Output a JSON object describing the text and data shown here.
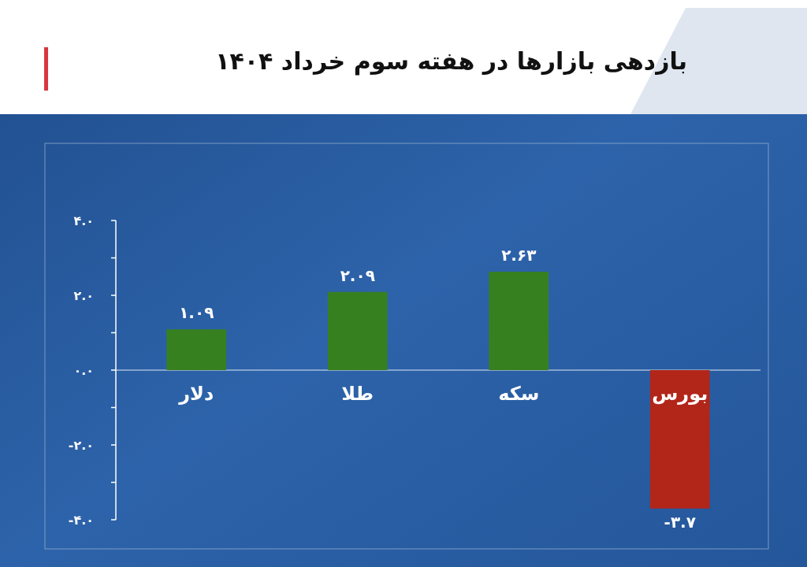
{
  "chart_data": {
    "type": "bar",
    "title": "بازدهی بازارها در هفته سوم خرداد ۱۴۰۴",
    "categories": [
      "دلار",
      "طلا",
      "سکه",
      "بورس"
    ],
    "values": [
      1.09,
      2.09,
      2.63,
      -3.7
    ],
    "colors": [
      "#37801f",
      "#37801f",
      "#37801f",
      "#b2261a"
    ],
    "value_labels": [
      "۱.۰۹",
      "۲.۰۹",
      "۲.۶۳",
      "-۳.۷"
    ],
    "ylim": [
      -4,
      4
    ],
    "yticks": [
      {
        "value": 4,
        "label": "۴.۰"
      },
      {
        "value": 3,
        "label": null
      },
      {
        "value": 2,
        "label": "۲.۰"
      },
      {
        "value": 1,
        "label": null
      },
      {
        "value": 0,
        "label": "۰.۰"
      },
      {
        "value": -1,
        "label": null
      },
      {
        "value": -2,
        "label": "-۲.۰"
      },
      {
        "value": -3,
        "label": null
      },
      {
        "value": -4,
        "label": "-۴.۰"
      }
    ],
    "grid": false
  }
}
